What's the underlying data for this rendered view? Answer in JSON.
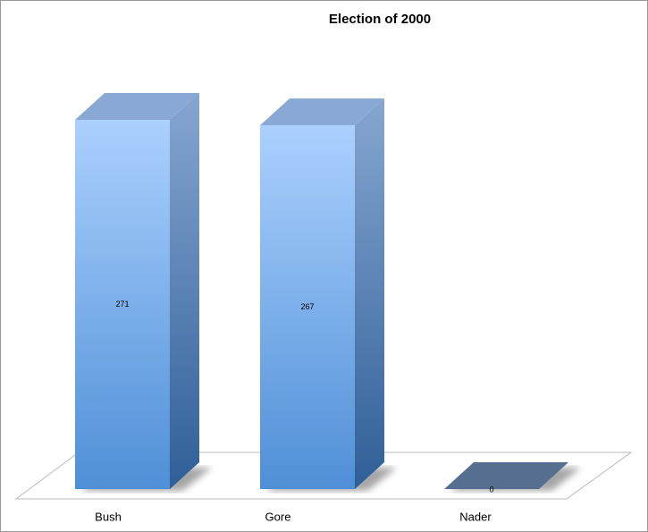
{
  "chart_data": {
    "type": "bar3d",
    "title": "Election of 2000",
    "categories": [
      "Bush",
      "Gore",
      "Nader"
    ],
    "values": [
      271,
      267,
      0
    ],
    "color": "#4f8fd6"
  }
}
